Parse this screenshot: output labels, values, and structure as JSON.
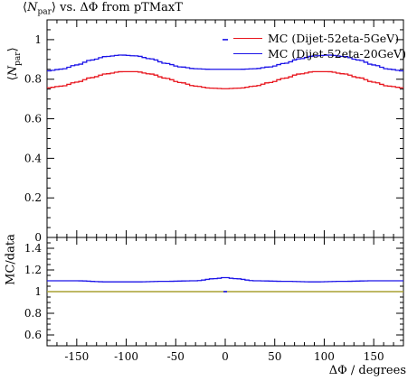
{
  "chart_data": [
    {
      "type": "line",
      "title": "⟨N_par⟩ vs. ΔΦ from pTMaxT",
      "title_parts": {
        "pre": "⟨",
        "sym": "N",
        "sub": "par",
        "post": "⟩ vs. ΔΦ from pTMaxT"
      },
      "ylabel": "⟨N_par⟩",
      "ylabel_parts": {
        "pre": "⟨",
        "sym": "N",
        "sub": "par",
        "post": "⟩"
      },
      "xlim": [
        -180,
        180
      ],
      "ylim": [
        0,
        1.1
      ],
      "yticks": [
        0,
        0.2,
        0.4,
        0.6,
        0.8,
        1
      ],
      "ytick_labels": [
        "0",
        "0.2",
        "0.4",
        "0.6",
        "0.8",
        "1"
      ],
      "legend_position": "top-right",
      "x": [
        -180,
        -165,
        -150,
        -135,
        -120,
        -105,
        -90,
        -75,
        -60,
        -45,
        -30,
        -15,
        0,
        15,
        30,
        45,
        60,
        75,
        90,
        105,
        120,
        135,
        150,
        165,
        180
      ],
      "series": [
        {
          "name": "MC (Dijet-52eta-5GeV)",
          "color": "#e8141c",
          "values": [
            0.756,
            0.765,
            0.785,
            0.808,
            0.827,
            0.838,
            0.838,
            0.826,
            0.805,
            0.783,
            0.765,
            0.755,
            0.752,
            0.755,
            0.765,
            0.783,
            0.805,
            0.826,
            0.838,
            0.838,
            0.827,
            0.808,
            0.785,
            0.765,
            0.756
          ]
        },
        {
          "name": "MC (Dijet-52eta-20GeV)",
          "color": "#1c14e8",
          "values": [
            0.842,
            0.851,
            0.872,
            0.897,
            0.915,
            0.922,
            0.918,
            0.903,
            0.88,
            0.862,
            0.853,
            0.85,
            0.85,
            0.85,
            0.853,
            0.862,
            0.88,
            0.903,
            0.918,
            0.922,
            0.915,
            0.897,
            0.872,
            0.851,
            0.842
          ]
        }
      ],
      "markers": [
        {
          "x": 0,
          "y": 1.0,
          "color": "#1c14e8"
        }
      ]
    },
    {
      "type": "line",
      "ylabel": "MC/data",
      "xlabel": "ΔΦ / degrees",
      "xlim": [
        -180,
        180
      ],
      "ylim": [
        0.5,
        1.5
      ],
      "yticks": [
        0.6,
        0.8,
        1,
        1.2,
        1.4
      ],
      "ytick_labels": [
        "0.6",
        "0.8",
        "1",
        "1.2",
        "1.4"
      ],
      "xticks": [
        -150,
        -100,
        -50,
        0,
        50,
        100,
        150
      ],
      "xtick_labels": [
        "-150",
        "-100",
        "-50",
        "0",
        "50",
        "100",
        "150"
      ],
      "x": [
        -180,
        -150,
        -120,
        -90,
        -60,
        -30,
        -10,
        0,
        10,
        30,
        60,
        90,
        120,
        150,
        180
      ],
      "series": [
        {
          "name": "MC/data",
          "color": "#1c14e8",
          "values": [
            1.1,
            1.1,
            1.09,
            1.09,
            1.095,
            1.1,
            1.12,
            1.13,
            1.12,
            1.1,
            1.095,
            1.09,
            1.095,
            1.1,
            1.1
          ]
        }
      ],
      "reference": {
        "y": 1.0,
        "color": "#a8a032"
      },
      "markers": [
        {
          "x": 0,
          "y": 1.0,
          "color": "#1c14e8"
        }
      ]
    }
  ]
}
